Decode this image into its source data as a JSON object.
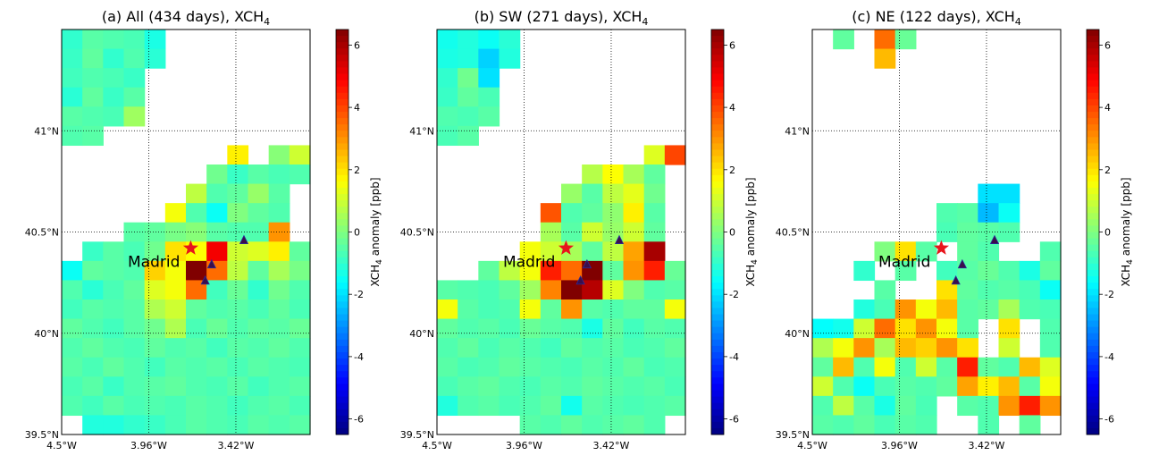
{
  "chart_data": [
    {
      "type": "heatmap",
      "title": "(a) All (434 days), XCH",
      "title_sub": "4",
      "x_tick_labels": [
        "4.5°W",
        "3.96°W",
        "3.42°W"
      ],
      "y_tick_labels": [
        "41°N",
        "40.5°N",
        "40°N",
        "39.5°N"
      ],
      "colorbar": {
        "label": "anomaly [ppb]",
        "label_prefix": "XCH",
        "label_sub": "4",
        "range": [
          -6.5,
          6.5
        ],
        "ticks": [
          "-6",
          "-4",
          "-2",
          "0",
          "2",
          "4",
          "6"
        ]
      },
      "annotations": {
        "city": "Madrid",
        "markers": [
          "star",
          "triangle",
          "triangle",
          "triangle"
        ]
      },
      "grid": "dotted",
      "rows": [
        [
          -1.0,
          -0.5,
          -0.6,
          -0.7,
          -1.3,
          null,
          null,
          null,
          null,
          null,
          null,
          null
        ],
        [
          -0.9,
          -0.4,
          -1.0,
          -0.6,
          -1.1,
          null,
          null,
          null,
          null,
          null,
          null,
          null
        ],
        [
          -0.8,
          -0.6,
          -0.7,
          -0.9,
          null,
          null,
          null,
          null,
          null,
          null,
          null,
          null
        ],
        [
          -1.1,
          -0.4,
          -0.9,
          -0.5,
          null,
          null,
          null,
          null,
          null,
          null,
          null,
          null
        ],
        [
          -0.5,
          -0.6,
          -0.7,
          0.4,
          null,
          null,
          null,
          null,
          null,
          null,
          null,
          null
        ],
        [
          -0.6,
          -0.5,
          null,
          null,
          null,
          null,
          null,
          null,
          null,
          null,
          null,
          null
        ],
        [
          null,
          null,
          null,
          null,
          null,
          null,
          null,
          null,
          1.8,
          null,
          0.1,
          1.0
        ],
        [
          null,
          null,
          null,
          null,
          null,
          null,
          null,
          -0.2,
          -0.9,
          -0.5,
          -0.7,
          -0.6
        ],
        [
          null,
          null,
          null,
          null,
          null,
          null,
          0.8,
          -0.6,
          -0.4,
          0.3,
          -0.5,
          null
        ],
        [
          null,
          null,
          null,
          null,
          null,
          1.5,
          -0.6,
          -1.5,
          0.0,
          -0.4,
          -0.6,
          null
        ],
        [
          null,
          null,
          null,
          -0.5,
          -0.4,
          -0.1,
          0.1,
          -0.5,
          -0.6,
          -0.6,
          3.0,
          null
        ],
        [
          null,
          -0.9,
          -0.5,
          -0.7,
          -0.2,
          2.0,
          1.6,
          5.0,
          1.0,
          1.2,
          1.8,
          -0.4
        ],
        [
          -1.5,
          -0.4,
          -0.5,
          -0.6,
          2.2,
          1.5,
          6.5,
          3.5,
          0.8,
          -0.4,
          0.5,
          -0.1
        ],
        [
          -0.6,
          -1.1,
          -0.7,
          -0.4,
          1.2,
          1.5,
          3.5,
          -0.8,
          -0.3,
          -1.0,
          -0.2,
          -0.6
        ],
        [
          -0.8,
          -0.5,
          -0.6,
          -0.5,
          0.6,
          1.0,
          -0.4,
          -0.6,
          -0.5,
          -0.7,
          -0.4,
          -0.7
        ],
        [
          -0.4,
          -0.6,
          -0.8,
          -0.5,
          -0.2,
          0.6,
          -0.7,
          -0.3,
          -0.6,
          -0.4,
          -0.5,
          -0.3
        ],
        [
          -0.6,
          -0.4,
          -0.6,
          -0.7,
          -0.4,
          -0.6,
          -0.5,
          -0.8,
          -0.5,
          -0.6,
          -0.4,
          -0.6
        ],
        [
          -0.5,
          -0.7,
          -0.4,
          -0.6,
          -0.8,
          -0.5,
          -0.6,
          -0.5,
          -0.7,
          -0.5,
          -0.6,
          -0.7
        ],
        [
          -0.7,
          -0.5,
          -0.9,
          -0.6,
          -0.5,
          -0.4,
          -0.6,
          -0.7,
          -0.5,
          -0.8,
          -0.6,
          -0.5
        ],
        [
          -0.6,
          -0.8,
          -0.5,
          -0.7,
          -0.6,
          -0.7,
          -0.5,
          -0.6,
          -0.8,
          -0.6,
          -0.5,
          -0.7
        ],
        [
          null,
          -1.2,
          -1.2,
          -1.0,
          -0.9,
          -0.7,
          -0.5,
          -0.6,
          -0.7,
          -0.5,
          -0.6,
          -0.5
        ]
      ]
    },
    {
      "type": "heatmap",
      "title": "(b) SW (271 days), XCH",
      "title_sub": "4",
      "x_tick_labels": [
        "4.5°W",
        "3.96°W",
        "3.42°W"
      ],
      "y_tick_labels": [
        "41°N",
        "40.5°N",
        "40°N",
        "39.5°N"
      ],
      "colorbar": {
        "label": "anomaly [ppb]",
        "label_prefix": "XCH",
        "label_sub": "4",
        "range": [
          -6.5,
          6.5
        ],
        "ticks": [
          "-6",
          "-4",
          "-2",
          "0",
          "2",
          "4",
          "6"
        ]
      },
      "annotations": {
        "city": "Madrid",
        "markers": [
          "star",
          "triangle",
          "triangle",
          "triangle"
        ]
      },
      "grid": "dotted",
      "rows": [
        [
          -1.4,
          -1.2,
          -1.5,
          -1.1,
          null,
          null,
          null,
          null,
          null,
          null,
          null,
          null
        ],
        [
          -1.3,
          -1.2,
          -2.2,
          -1.2,
          null,
          null,
          null,
          null,
          null,
          null,
          null,
          null
        ],
        [
          -1.0,
          -0.2,
          -2.0,
          null,
          null,
          null,
          null,
          null,
          null,
          null,
          null,
          null
        ],
        [
          -0.9,
          -0.4,
          -0.7,
          null,
          null,
          null,
          null,
          null,
          null,
          null,
          null,
          null
        ],
        [
          -0.6,
          -0.7,
          -0.5,
          null,
          null,
          null,
          null,
          null,
          null,
          null,
          null,
          null
        ],
        [
          -0.7,
          -0.5,
          null,
          null,
          null,
          null,
          null,
          null,
          null,
          null,
          null,
          null
        ],
        [
          null,
          null,
          null,
          null,
          null,
          null,
          null,
          null,
          null,
          null,
          1.2,
          4.0
        ],
        [
          null,
          null,
          null,
          null,
          null,
          null,
          null,
          0.7,
          1.6,
          0.5,
          -0.4,
          null
        ],
        [
          null,
          null,
          null,
          null,
          null,
          null,
          0.3,
          -0.5,
          0.8,
          1.3,
          -0.2,
          null
        ],
        [
          null,
          null,
          null,
          null,
          null,
          3.8,
          -0.6,
          -0.4,
          0.2,
          1.8,
          -0.5,
          null
        ],
        [
          null,
          null,
          null,
          null,
          null,
          0.5,
          -0.5,
          1.0,
          0.3,
          1.0,
          -0.4,
          null
        ],
        [
          null,
          null,
          null,
          null,
          1.5,
          1.0,
          0.5,
          -0.4,
          0.8,
          2.8,
          6.0,
          null
        ],
        [
          null,
          null,
          -0.4,
          0.8,
          1.5,
          4.5,
          3.5,
          6.5,
          -0.4,
          3.0,
          4.5,
          -0.3
        ],
        [
          -0.5,
          -0.6,
          -0.7,
          -0.4,
          0.4,
          3.2,
          6.5,
          5.8,
          1.2,
          0.0,
          -0.6,
          -0.5
        ],
        [
          1.5,
          -0.5,
          -0.7,
          -0.6,
          1.5,
          -0.4,
          3.0,
          -0.5,
          -0.6,
          -0.4,
          -0.4,
          1.5
        ],
        [
          -0.4,
          -0.6,
          -0.5,
          -0.7,
          -0.3,
          -0.5,
          -0.6,
          -1.3,
          -0.4,
          -0.8,
          -0.5,
          -0.6
        ],
        [
          -0.6,
          -0.4,
          -0.7,
          -0.5,
          -0.6,
          -0.8,
          -0.4,
          -0.6,
          -0.5,
          -0.7,
          -0.6,
          -0.4
        ],
        [
          -0.5,
          -0.7,
          -0.6,
          -0.4,
          -0.5,
          -0.6,
          -0.7,
          -0.5,
          -0.6,
          -0.4,
          -0.7,
          -0.6
        ],
        [
          -0.7,
          -0.5,
          -0.4,
          -0.6,
          -0.7,
          -0.5,
          -0.6,
          -0.4,
          -0.5,
          -0.6,
          -0.5,
          -0.7
        ],
        [
          -1.2,
          -0.6,
          -0.5,
          -0.7,
          -0.6,
          -0.4,
          -1.4,
          -0.5,
          -0.6,
          -0.7,
          -0.6,
          -0.5
        ],
        [
          null,
          null,
          null,
          null,
          -0.5,
          -0.6,
          -0.4,
          -0.6,
          -0.5,
          -0.4,
          -0.6,
          null
        ]
      ]
    },
    {
      "type": "heatmap",
      "title": "(c) NE (122 days), XCH",
      "title_sub": "4",
      "x_tick_labels": [
        "4.5°W",
        "3.96°W",
        "3.42°W"
      ],
      "y_tick_labels": [
        "41°N",
        "40.5°N",
        "40°N",
        "39.5°N"
      ],
      "colorbar": {
        "label": "anomaly [ppb]",
        "label_prefix": "XCH",
        "label_sub": "4",
        "range": [
          -6.5,
          6.5
        ],
        "ticks": [
          "-6",
          "-4",
          "-2",
          "0",
          "2",
          "4",
          "6"
        ]
      },
      "annotations": {
        "city": "Madrid",
        "markers": [
          "star",
          "triangle",
          "triangle",
          "triangle"
        ]
      },
      "grid": "dotted",
      "rows": [
        [
          null,
          -0.4,
          null,
          3.5,
          -0.3,
          null,
          null,
          null,
          null,
          null,
          null,
          null
        ],
        [
          null,
          null,
          null,
          2.5,
          null,
          null,
          null,
          null,
          null,
          null,
          null,
          null
        ],
        [
          null,
          null,
          null,
          null,
          null,
          null,
          null,
          null,
          null,
          null,
          null,
          null
        ],
        [
          null,
          null,
          null,
          null,
          null,
          null,
          null,
          null,
          null,
          null,
          null,
          null
        ],
        [
          null,
          null,
          null,
          null,
          null,
          null,
          null,
          null,
          null,
          null,
          null,
          null
        ],
        [
          null,
          null,
          null,
          null,
          null,
          null,
          null,
          null,
          null,
          null,
          null,
          null
        ],
        [
          null,
          null,
          null,
          null,
          null,
          null,
          null,
          null,
          null,
          null,
          null,
          null
        ],
        [
          null,
          null,
          null,
          null,
          null,
          null,
          null,
          null,
          null,
          null,
          null,
          null
        ],
        [
          null,
          null,
          null,
          null,
          null,
          null,
          null,
          null,
          -2.0,
          -2.0,
          null,
          null
        ],
        [
          null,
          null,
          null,
          null,
          null,
          null,
          -0.6,
          -0.5,
          -2.5,
          -1.5,
          null,
          null
        ],
        [
          null,
          null,
          null,
          null,
          null,
          null,
          -0.7,
          -0.4,
          -0.5,
          -0.6,
          null,
          null
        ],
        [
          null,
          null,
          null,
          0.0,
          2.0,
          -0.5,
          null,
          -0.4,
          -0.6,
          null,
          null,
          -0.6
        ],
        [
          null,
          null,
          -1.0,
          null,
          -0.5,
          null,
          -0.8,
          -0.5,
          -0.3,
          -0.6,
          -1.3,
          -0.4
        ],
        [
          null,
          null,
          null,
          -0.5,
          null,
          null,
          2.0,
          -0.4,
          -0.6,
          -0.5,
          -0.7,
          -1.5
        ],
        [
          null,
          null,
          -1.2,
          -0.7,
          3.0,
          1.5,
          2.5,
          -0.5,
          -0.4,
          0.5,
          -0.6,
          -0.7
        ],
        [
          -1.6,
          -1.4,
          1.0,
          3.5,
          2.0,
          3.0,
          1.5,
          -0.5,
          null,
          2.0,
          null,
          -0.6
        ],
        [
          0.6,
          1.5,
          3.0,
          0.5,
          2.5,
          2.2,
          3.0,
          2.0,
          null,
          1.0,
          null,
          -0.6
        ],
        [
          -0.4,
          2.5,
          -0.6,
          1.5,
          -0.6,
          1.0,
          -0.5,
          4.5,
          -0.4,
          -0.6,
          2.5,
          1.2
        ],
        [
          1.0,
          -0.6,
          -1.5,
          -0.7,
          -0.5,
          -0.6,
          -0.4,
          2.8,
          1.8,
          2.5,
          -0.5,
          1.5
        ],
        [
          -0.6,
          0.8,
          -0.5,
          -1.3,
          -0.4,
          -0.7,
          null,
          -0.5,
          -0.6,
          3.0,
          4.5,
          3.0
        ],
        [
          -0.5,
          -0.6,
          -0.4,
          -0.7,
          -0.5,
          -0.6,
          null,
          null,
          -0.6,
          null,
          -0.4,
          null
        ]
      ]
    }
  ]
}
